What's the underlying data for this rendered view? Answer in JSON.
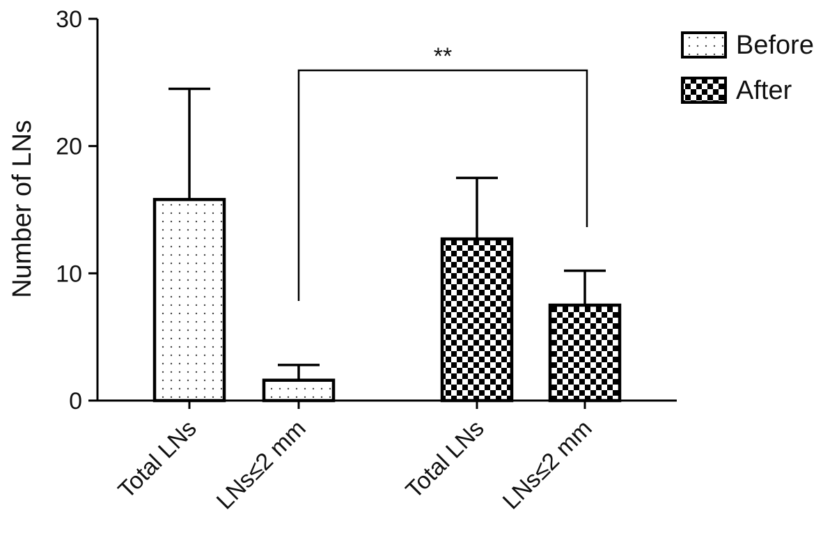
{
  "chart_data": {
    "type": "bar",
    "ylabel": "Number of LNs",
    "xlabel": "",
    "ylim": [
      0,
      30
    ],
    "yticks": [
      0,
      10,
      20,
      30
    ],
    "grid": false,
    "legend_position": "top-right",
    "series": [
      {
        "name": "Before",
        "pattern": "dots",
        "categories": [
          "Total LNs",
          "LNs≤2 mm"
        ],
        "values": [
          15.8,
          1.6
        ],
        "errors": [
          8.7,
          1.2
        ]
      },
      {
        "name": "After",
        "pattern": "checkerboard",
        "categories": [
          "Total LNs",
          "LNs≤2 mm"
        ],
        "values": [
          12.7,
          7.5
        ],
        "errors": [
          4.8,
          2.7
        ]
      }
    ],
    "annotations": [
      {
        "text": "**",
        "between": [
          "Before: LNs≤2 mm",
          "After: LNs≤2 mm"
        ]
      }
    ],
    "colors": {
      "bar_stroke": "#000000",
      "axis": "#000000",
      "background": "#ffffff"
    }
  }
}
